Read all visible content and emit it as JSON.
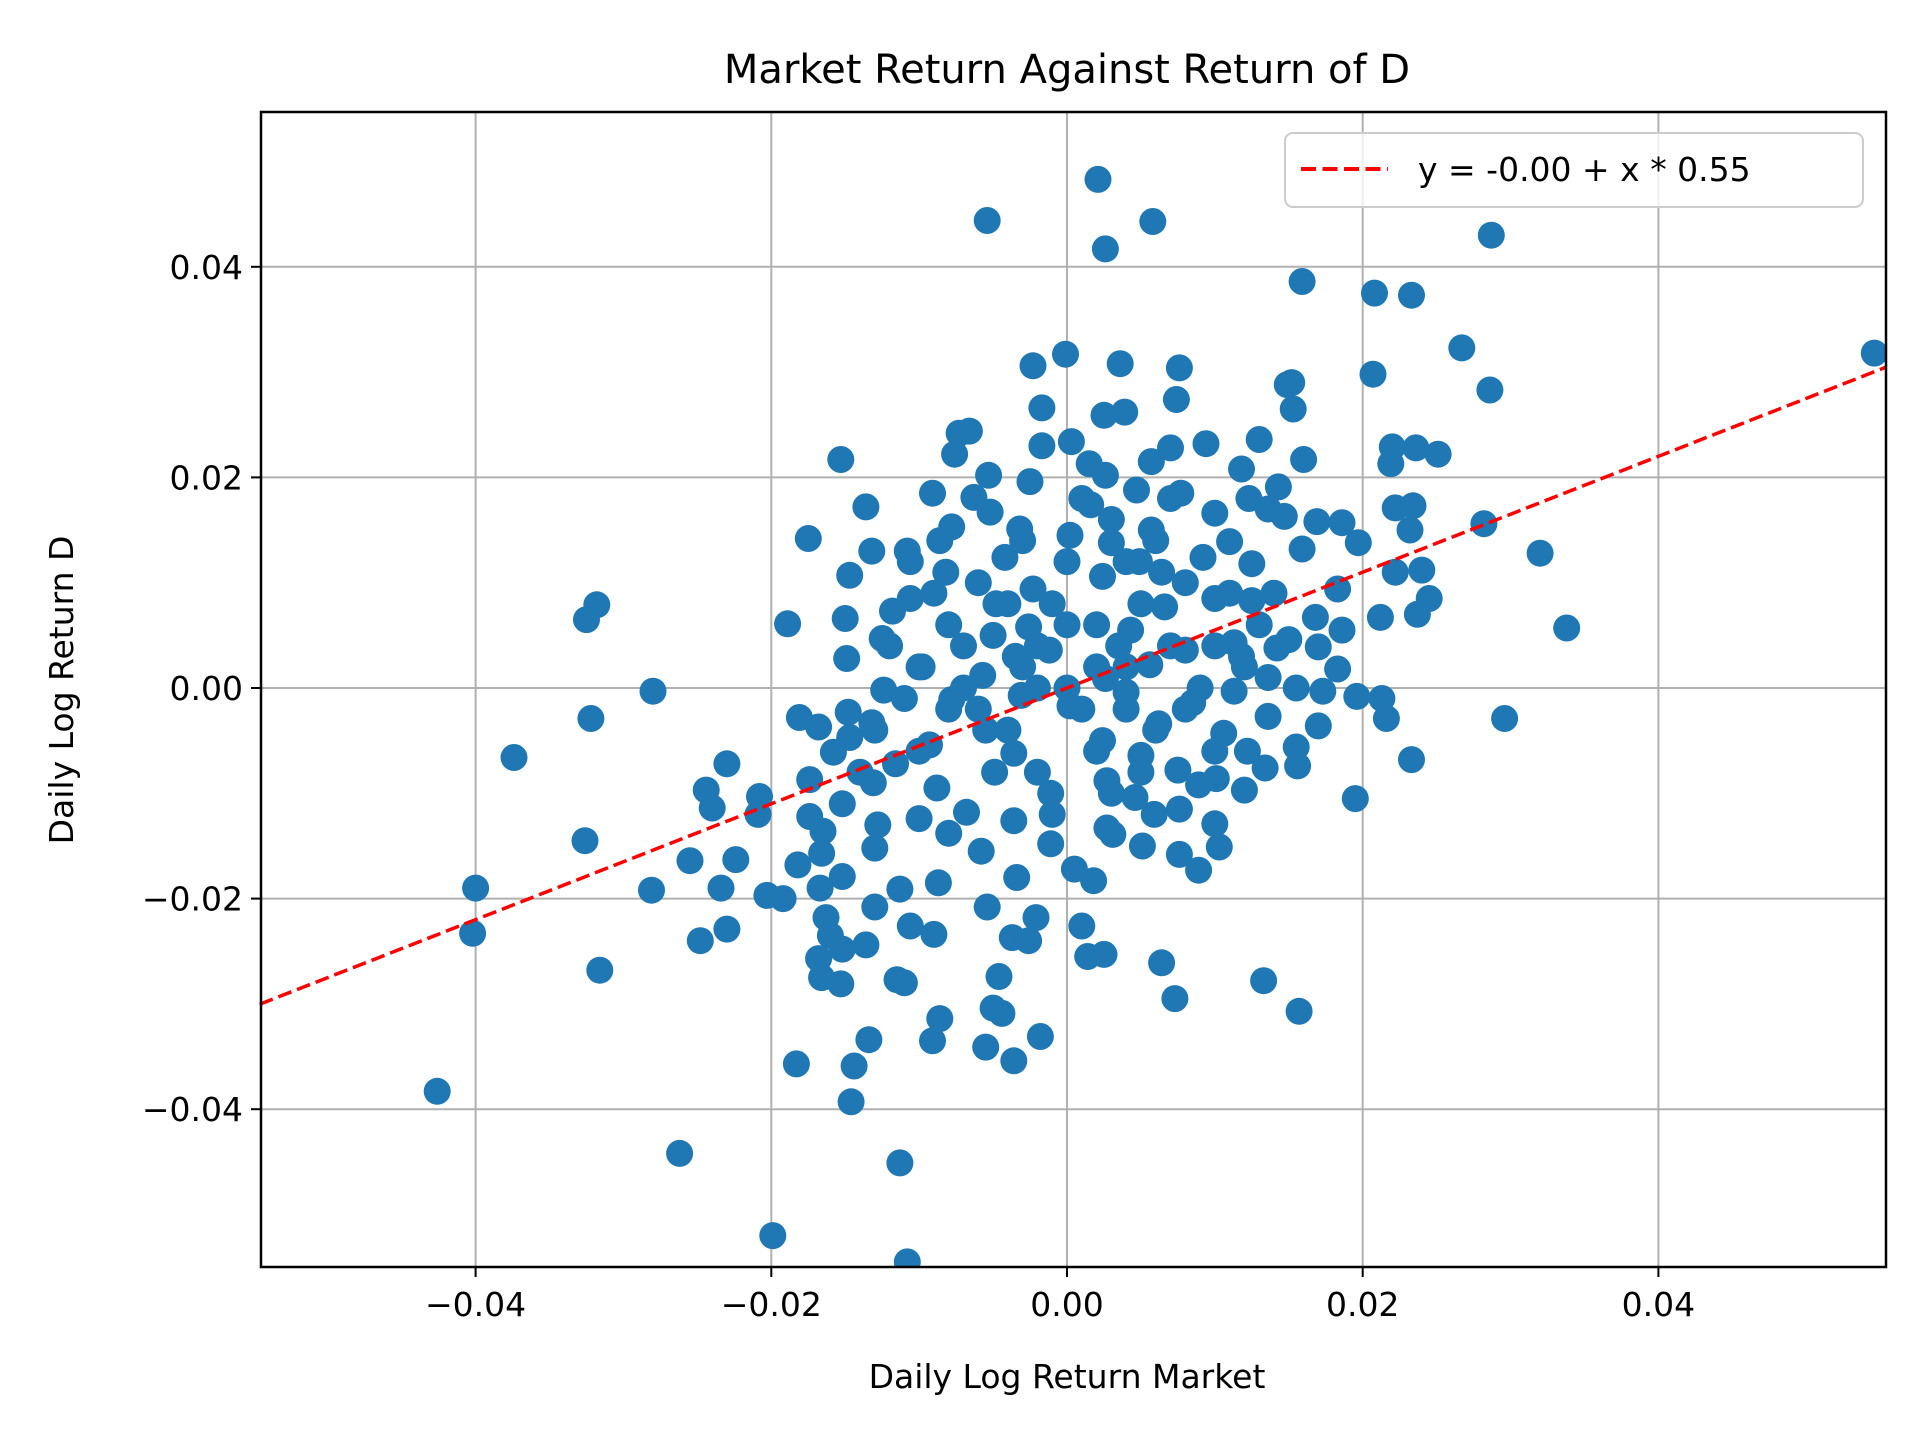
{
  "chart_data": {
    "type": "scatter",
    "title": "Market Return Against Return of D",
    "xlabel": "Daily Log Return Market",
    "ylabel": "Daily Log Return D",
    "xlim": [
      -0.0546,
      0.0554
    ],
    "ylim": [
      -0.0551,
      0.0546
    ],
    "xticks": [
      -0.04,
      -0.02,
      0.0,
      0.02,
      0.04
    ],
    "xtick_labels": [
      "−0.04",
      "−0.02",
      "0.00",
      "0.02",
      "0.04"
    ],
    "yticks": [
      -0.04,
      -0.02,
      0.0,
      0.02,
      0.04
    ],
    "ytick_labels": [
      "−0.04",
      "−0.02",
      "0.00",
      "0.02",
      "0.04"
    ],
    "grid": true,
    "legend_position": "upper right",
    "legend": [
      {
        "label": "y = -0.00 + x * 0.55",
        "style": "dashed",
        "color": "#ff0000"
      }
    ],
    "marker_color": "#1f77b4",
    "regression": {
      "intercept": -0.0,
      "slope": 0.55,
      "color": "#ff0000",
      "style": "dashed"
    },
    "points": [
      [
        0.0021,
        0.0483
      ],
      [
        -0.0054,
        0.0444
      ],
      [
        0.0058,
        0.0443
      ],
      [
        0.0026,
        0.0417
      ],
      [
        0.0287,
        0.043
      ],
      [
        0.0159,
        0.0386
      ],
      [
        0.0208,
        0.0375
      ],
      [
        0.0233,
        0.0373
      ],
      [
        0.0267,
        0.0323
      ],
      [
        0.0546,
        0.0318
      ],
      [
        -0.0001,
        0.0317
      ],
      [
        0.0036,
        0.0308
      ],
      [
        -0.0023,
        0.0306
      ],
      [
        0.0076,
        0.0304
      ],
      [
        0.0207,
        0.0298
      ],
      [
        0.0149,
        0.0288
      ],
      [
        0.0152,
        0.029
      ],
      [
        0.0286,
        0.0283
      ],
      [
        0.0074,
        0.0274
      ],
      [
        -0.0017,
        0.0266
      ],
      [
        0.0153,
        0.0265
      ],
      [
        0.0025,
        0.0259
      ],
      [
        0.0039,
        0.0262
      ],
      [
        -0.0066,
        0.0244
      ],
      [
        -0.0073,
        0.0242
      ],
      [
        0.013,
        0.0236
      ],
      [
        0.0236,
        0.0228
      ],
      [
        0.022,
        0.0229
      ],
      [
        0.0003,
        0.0234
      ],
      [
        -0.0017,
        0.023
      ],
      [
        0.0094,
        0.0232
      ],
      [
        0.007,
        0.0228
      ],
      [
        0.0251,
        0.0222
      ],
      [
        -0.0076,
        0.0222
      ],
      [
        0.0219,
        0.0213
      ],
      [
        0.016,
        0.0217
      ],
      [
        -0.0153,
        0.0217
      ],
      [
        0.0057,
        0.0215
      ],
      [
        0.0015,
        0.0213
      ],
      [
        0.0118,
        0.0208
      ],
      [
        -0.0053,
        0.0202
      ],
      [
        0.0026,
        0.0202
      ],
      [
        -0.0025,
        0.0196
      ],
      [
        0.0143,
        0.0191
      ],
      [
        -0.0091,
        0.0185
      ],
      [
        0.0047,
        0.0188
      ],
      [
        0.0077,
        0.0185
      ],
      [
        -0.0063,
        0.0181
      ],
      [
        0.0123,
        0.018
      ],
      [
        -0.0136,
        0.0172
      ],
      [
        0.0222,
        0.0171
      ],
      [
        0.0234,
        0.0173
      ],
      [
        0.0016,
        0.0174
      ],
      [
        -0.0052,
        0.0167
      ],
      [
        0.01,
        0.0166
      ],
      [
        0.0169,
        0.0158
      ],
      [
        0.0186,
        0.0157
      ],
      [
        0.0282,
        0.0156
      ],
      [
        0.0147,
        0.0163
      ],
      [
        0.0136,
        0.017
      ],
      [
        -0.0078,
        0.0153
      ],
      [
        -0.0032,
        0.0151
      ],
      [
        0.0057,
        0.015
      ],
      [
        0.0232,
        0.015
      ],
      [
        0.0002,
        0.0145
      ],
      [
        -0.0175,
        0.0142
      ],
      [
        0.0197,
        0.0138
      ],
      [
        0.003,
        0.0138
      ],
      [
        -0.0086,
        0.014
      ],
      [
        0.011,
        0.0139
      ],
      [
        -0.0132,
        0.013
      ],
      [
        -0.0108,
        0.013
      ],
      [
        0.032,
        0.0128
      ],
      [
        0.0092,
        0.0124
      ],
      [
        0.0159,
        0.0132
      ],
      [
        -0.0042,
        0.0124
      ],
      [
        0.0049,
        0.012
      ],
      [
        0.0125,
        0.0118
      ],
      [
        -0.0106,
        0.012
      ],
      [
        0.024,
        0.0112
      ],
      [
        0.0222,
        0.011
      ],
      [
        -0.0147,
        0.0107
      ],
      [
        0.0064,
        0.011
      ],
      [
        -0.0082,
        0.011
      ],
      [
        0.0024,
        0.0106
      ],
      [
        0.0183,
        0.0094
      ],
      [
        -0.0023,
        0.0094
      ],
      [
        0.014,
        0.009
      ],
      [
        0.01,
        0.0085
      ],
      [
        -0.0106,
        0.0085
      ],
      [
        0.0245,
        0.0085
      ],
      [
        -0.0318,
        0.0079
      ],
      [
        0.0125,
        0.0083
      ],
      [
        -0.0048,
        0.008
      ],
      [
        0.0066,
        0.0077
      ],
      [
        -0.0118,
        0.0073
      ],
      [
        0.0212,
        0.0067
      ],
      [
        0.0237,
        0.007
      ],
      [
        0.0168,
        0.0067
      ],
      [
        -0.015,
        0.0066
      ],
      [
        -0.0325,
        0.0065
      ],
      [
        -0.0189,
        0.0061
      ],
      [
        0.0338,
        0.0057
      ],
      [
        0.0186,
        0.0055
      ],
      [
        -0.0026,
        0.0058
      ],
      [
        0.0043,
        0.0055
      ],
      [
        0.015,
        0.0046
      ],
      [
        -0.0125,
        0.0047
      ],
      [
        0.0113,
        0.0043
      ],
      [
        0.0035,
        0.004
      ],
      [
        -0.007,
        0.004
      ],
      [
        0.017,
        0.0039
      ],
      [
        0.0142,
        0.0038
      ],
      [
        0.008,
        0.0036
      ],
      [
        -0.0012,
        0.0036
      ],
      [
        0.0118,
        0.003
      ],
      [
        -0.0149,
        0.0028
      ],
      [
        -0.0035,
        0.003
      ],
      [
        0.0183,
        0.0018
      ],
      [
        0.0056,
        0.0022
      ],
      [
        -0.0098,
        0.002
      ],
      [
        0.0136,
        0.001
      ],
      [
        -0.0057,
        0.0012
      ],
      [
        0.0026,
        0.0009
      ],
      [
        0.0155,
        0.0
      ],
      [
        -0.028,
        -0.0003
      ],
      [
        0.0113,
        -0.0003
      ],
      [
        -0.0124,
        -0.0002
      ],
      [
        0.004,
        -0.0004
      ],
      [
        0.0173,
        -0.0003
      ],
      [
        -0.0031,
        -0.0007
      ],
      [
        0.0213,
        -0.001
      ],
      [
        -0.0078,
        -0.0011
      ],
      [
        0.0085,
        -0.0014
      ],
      [
        0.0196,
        -0.0008
      ],
      [
        0.0002,
        -0.0017
      ],
      [
        -0.0148,
        -0.0023
      ],
      [
        0.0136,
        -0.0027
      ],
      [
        -0.0181,
        -0.0028
      ],
      [
        -0.0322,
        -0.0029
      ],
      [
        0.0296,
        -0.0029
      ],
      [
        0.0216,
        -0.0029
      ],
      [
        -0.0132,
        -0.0033
      ],
      [
        0.0062,
        -0.0034
      ],
      [
        0.017,
        -0.0036
      ],
      [
        -0.0168,
        -0.0037
      ],
      [
        -0.0055,
        -0.004
      ],
      [
        0.0106,
        -0.0043
      ],
      [
        -0.0147,
        -0.0047
      ],
      [
        0.0024,
        -0.005
      ],
      [
        -0.0093,
        -0.0054
      ],
      [
        0.0155,
        -0.0056
      ],
      [
        0.0122,
        -0.006
      ],
      [
        -0.0158,
        -0.0061
      ],
      [
        -0.0036,
        -0.0062
      ],
      [
        0.005,
        -0.0064
      ],
      [
        -0.0374,
        -0.0066
      ],
      [
        0.0233,
        -0.0068
      ],
      [
        -0.0116,
        -0.0072
      ],
      [
        0.0156,
        -0.0074
      ],
      [
        -0.023,
        -0.0072
      ],
      [
        0.0134,
        -0.0076
      ],
      [
        0.0075,
        -0.0078
      ],
      [
        -0.014,
        -0.008
      ],
      [
        -0.0049,
        -0.008
      ],
      [
        0.0101,
        -0.0086
      ],
      [
        -0.0174,
        -0.0087
      ],
      [
        0.0027,
        -0.0088
      ],
      [
        -0.0131,
        -0.009
      ],
      [
        0.0089,
        -0.0092
      ],
      [
        -0.0088,
        -0.0095
      ],
      [
        0.012,
        -0.0097
      ],
      [
        -0.0244,
        -0.0097
      ],
      [
        -0.0011,
        -0.01
      ],
      [
        -0.0208,
        -0.0103
      ],
      [
        0.0195,
        -0.0105
      ],
      [
        0.0046,
        -0.0104
      ],
      [
        -0.0152,
        -0.011
      ],
      [
        -0.024,
        -0.0114
      ],
      [
        0.0076,
        -0.0115
      ],
      [
        -0.0068,
        -0.0118
      ],
      [
        -0.0209,
        -0.012
      ],
      [
        -0.0174,
        -0.0122
      ],
      [
        0.0059,
        -0.012
      ],
      [
        -0.01,
        -0.0124
      ],
      [
        -0.0036,
        -0.0126
      ],
      [
        0.01,
        -0.0129
      ],
      [
        -0.0128,
        -0.013
      ],
      [
        0.0027,
        -0.0133
      ],
      [
        -0.0165,
        -0.0136
      ],
      [
        -0.008,
        -0.0138
      ],
      [
        0.0031,
        -0.0139
      ],
      [
        -0.0326,
        -0.0145
      ],
      [
        -0.0011,
        -0.0148
      ],
      [
        -0.013,
        -0.0152
      ],
      [
        0.0103,
        -0.0151
      ],
      [
        0.0051,
        -0.015
      ],
      [
        -0.0058,
        -0.0155
      ],
      [
        0.0076,
        -0.0158
      ],
      [
        -0.0166,
        -0.0157
      ],
      [
        -0.0224,
        -0.0163
      ],
      [
        -0.0255,
        -0.0164
      ],
      [
        -0.0182,
        -0.0168
      ],
      [
        0.0089,
        -0.0173
      ],
      [
        -0.0034,
        -0.018
      ],
      [
        0.0005,
        -0.0172
      ],
      [
        -0.0152,
        -0.0179
      ],
      [
        0.0018,
        -0.0183
      ],
      [
        -0.0087,
        -0.0185
      ],
      [
        -0.0167,
        -0.019
      ],
      [
        -0.04,
        -0.019
      ],
      [
        -0.0281,
        -0.0192
      ],
      [
        -0.0234,
        -0.019
      ],
      [
        -0.0113,
        -0.0191
      ],
      [
        -0.0203,
        -0.0197
      ],
      [
        -0.0192,
        -0.02
      ],
      [
        -0.0054,
        -0.0208
      ],
      [
        -0.013,
        -0.0208
      ],
      [
        -0.0021,
        -0.0218
      ],
      [
        -0.0163,
        -0.0218
      ],
      [
        0.001,
        -0.0226
      ],
      [
        -0.0106,
        -0.0226
      ],
      [
        -0.023,
        -0.0229
      ],
      [
        -0.009,
        -0.0234
      ],
      [
        -0.0402,
        -0.0233
      ],
      [
        -0.016,
        -0.0235
      ],
      [
        -0.0037,
        -0.0237
      ],
      [
        -0.0026,
        -0.024
      ],
      [
        -0.0248,
        -0.024
      ],
      [
        -0.0136,
        -0.0244
      ],
      [
        -0.0152,
        -0.0248
      ],
      [
        0.0025,
        -0.0253
      ],
      [
        0.0014,
        -0.0255
      ],
      [
        -0.0168,
        -0.0257
      ],
      [
        0.0064,
        -0.0261
      ],
      [
        -0.0316,
        -0.0268
      ],
      [
        -0.0046,
        -0.0274
      ],
      [
        -0.0115,
        -0.0277
      ],
      [
        -0.0166,
        -0.0275
      ],
      [
        -0.011,
        -0.028
      ],
      [
        0.0133,
        -0.0278
      ],
      [
        -0.0153,
        -0.0281
      ],
      [
        0.0073,
        -0.0295
      ],
      [
        -0.005,
        -0.0304
      ],
      [
        -0.0044,
        -0.0309
      ],
      [
        0.0157,
        -0.0307
      ],
      [
        -0.0086,
        -0.0314
      ],
      [
        -0.0018,
        -0.0331
      ],
      [
        -0.0134,
        -0.0334
      ],
      [
        -0.0091,
        -0.0335
      ],
      [
        -0.0055,
        -0.0341
      ],
      [
        -0.0036,
        -0.0354
      ],
      [
        -0.0183,
        -0.0357
      ],
      [
        -0.0144,
        -0.0359
      ],
      [
        -0.0426,
        -0.0383
      ],
      [
        -0.0146,
        -0.0393
      ],
      [
        -0.0262,
        -0.0442
      ],
      [
        -0.0113,
        -0.0451
      ],
      [
        -0.0199,
        -0.052
      ],
      [
        -0.0108,
        -0.0545
      ]
    ],
    "dense_core_note_points": [
      [
        -0.012,
        0.004
      ],
      [
        -0.01,
        0.002
      ],
      [
        -0.008,
        0.006
      ],
      [
        -0.006,
        -0.002
      ],
      [
        -0.004,
        0.008
      ],
      [
        -0.002,
        0.004
      ],
      [
        0.0,
        0.0
      ],
      [
        0.002,
        0.006
      ],
      [
        0.004,
        0.002
      ],
      [
        0.006,
        -0.004
      ],
      [
        0.008,
        0.01
      ],
      [
        0.01,
        0.004
      ],
      [
        -0.006,
        0.01
      ],
      [
        0.002,
        -0.006
      ],
      [
        -0.002,
        -0.008
      ],
      [
        0.004,
        0.012
      ],
      [
        0.006,
        0.014
      ],
      [
        0.0,
        0.012
      ],
      [
        -0.004,
        -0.004
      ],
      [
        0.008,
        -0.002
      ],
      [
        0.01,
        -0.006
      ],
      [
        -0.01,
        -0.006
      ],
      [
        -0.008,
        -0.002
      ],
      [
        0.003,
        0.016
      ],
      [
        -0.001,
        0.008
      ],
      [
        0.001,
        -0.002
      ],
      [
        0.005,
        0.008
      ],
      [
        -0.003,
        0.002
      ],
      [
        0.007,
        0.004
      ],
      [
        -0.005,
        0.005
      ],
      [
        0.009,
        0.0
      ],
      [
        -0.007,
        0.0
      ],
      [
        0.011,
        0.009
      ],
      [
        -0.011,
        -0.001
      ],
      [
        0.012,
        0.002
      ],
      [
        -0.009,
        0.009
      ],
      [
        0.003,
        -0.01
      ],
      [
        -0.001,
        -0.012
      ],
      [
        0.005,
        -0.008
      ],
      [
        0.001,
        0.018
      ],
      [
        -0.003,
        0.014
      ],
      [
        0.007,
        0.018
      ],
      [
        0.013,
        0.006
      ],
      [
        -0.013,
        -0.004
      ],
      [
        0.0,
        0.006
      ],
      [
        0.002,
        0.002
      ],
      [
        -0.002,
        0.0
      ],
      [
        0.004,
        -0.002
      ]
    ]
  }
}
